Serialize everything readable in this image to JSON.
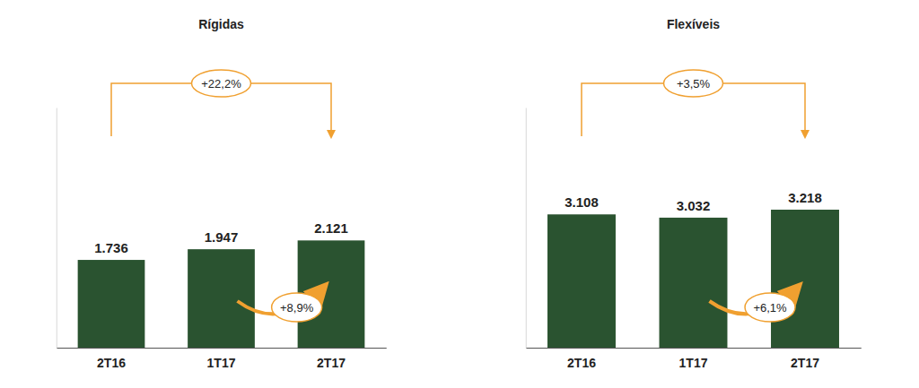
{
  "chart_data": [
    {
      "type": "bar",
      "title": "Rígidas",
      "categories": [
        "2T16",
        "1T17",
        "2T17"
      ],
      "values": [
        1736,
        1947,
        2121
      ],
      "value_labels": [
        "1.736",
        "1.947",
        "2.121"
      ],
      "color": "#2a5330",
      "ylim": [
        0,
        4750
      ],
      "data_labels": true,
      "tick_labels": "x",
      "annotations": [
        "+22,2%",
        "+8,9%"
      ]
    },
    {
      "type": "bar",
      "title": "Flexíveis",
      "categories": [
        "2T16",
        "1T17",
        "2T17"
      ],
      "values": [
        3108,
        3032,
        3218
      ],
      "value_labels": [
        "3.108",
        "3.032",
        "3.218"
      ],
      "color": "#2a5330",
      "ylim": [
        0,
        5600
      ],
      "data_labels": true,
      "tick_labels": "x",
      "annotations": [
        "+3,5%",
        "+6,1%"
      ]
    }
  ]
}
